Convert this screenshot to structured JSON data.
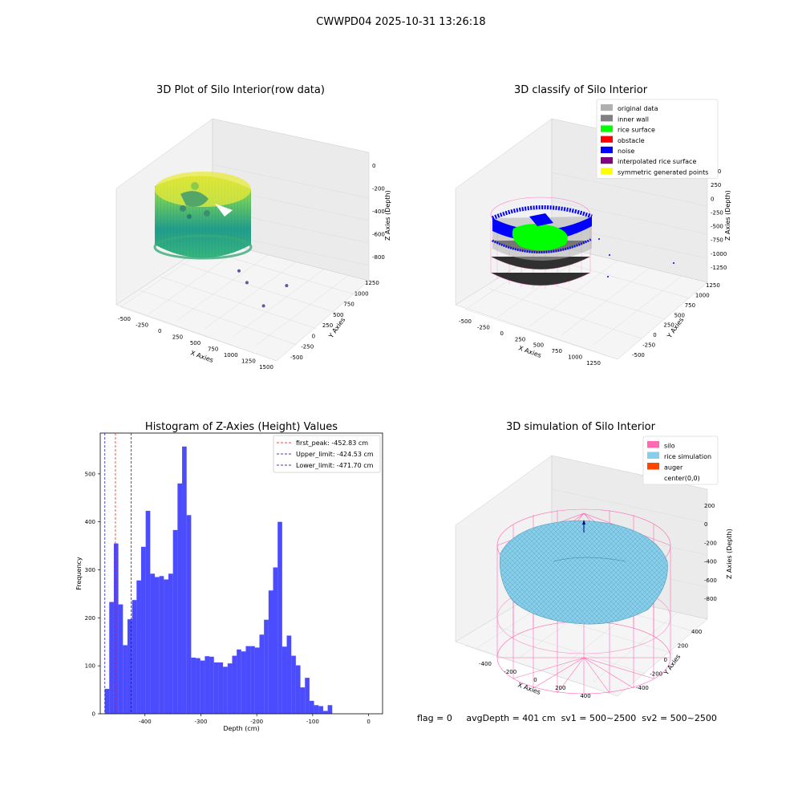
{
  "suptitle": "CWWPD04 2025-10-31 13:26:18",
  "footer": {
    "flag": "flag = 0",
    "avg_depth": "avgDepth = 401 cm",
    "sv1": "sv1 = 500~2500",
    "sv2": "sv2 = 500~2500"
  },
  "chart_data": [
    {
      "type": "scatter",
      "title": "3D Plot of Silo Interior(row data)",
      "xlabel": "X Axies",
      "ylabel": "Y Axies",
      "zlabel": "Z Axies (Depth)",
      "x_ticks": [
        "-500",
        "-250",
        "0",
        "250",
        "500",
        "750",
        "1000",
        "1250",
        "1500"
      ],
      "y_ticks": [
        "-500",
        "-250",
        "0",
        "250",
        "500",
        "750",
        "1000",
        "1250"
      ],
      "z_ticks": [
        "-800",
        "-600",
        "-400",
        "-200",
        "0"
      ],
      "colormap": "viridis",
      "outlier_points": [
        {
          "x": 1350,
          "y": 520,
          "z": -620
        },
        {
          "x": 1080,
          "y": 420,
          "z": -820
        },
        {
          "x": 900,
          "y": 320,
          "z": -560
        },
        {
          "x": 760,
          "y": 380,
          "z": -470
        }
      ]
    },
    {
      "type": "scatter",
      "title": "3D classify of Silo Interior",
      "xlabel": "X Axies",
      "ylabel": "Y Axies",
      "zlabel": "Z Axies (Depth)",
      "x_ticks": [
        "-500",
        "-250",
        "0",
        "250",
        "500",
        "750",
        "1000",
        "1250"
      ],
      "y_ticks": [
        "-500",
        "-250",
        "0",
        "250",
        "500",
        "750",
        "1000",
        "1250"
      ],
      "z_ticks": [
        "-1250",
        "-1000",
        "-750",
        "-500",
        "-250",
        "0",
        "250",
        "500"
      ],
      "legend": [
        {
          "label": "original data",
          "color": "#b0b0b0"
        },
        {
          "label": "inner wall",
          "color": "#808080"
        },
        {
          "label": "rice surface",
          "color": "#00ff00"
        },
        {
          "label": "obstacle",
          "color": "#ff0000"
        },
        {
          "label": "noise",
          "color": "#0000ff"
        },
        {
          "label": "interpolated rice surface",
          "color": "#800080"
        },
        {
          "label": "symmetric generated points",
          "color": "#ffff00"
        }
      ]
    },
    {
      "type": "bar",
      "title": "Histogram of Z-Axies (Height) Values",
      "xlabel": "Depth (cm)",
      "ylabel": "Frequency",
      "xlim": [
        -480,
        25
      ],
      "ylim": [
        0,
        585
      ],
      "x_ticks": [
        -400,
        -300,
        -200,
        -100,
        0
      ],
      "y_ticks": [
        0,
        100,
        200,
        300,
        400,
        500
      ],
      "bin_width": 8.14,
      "bin_start": -472.0,
      "bar_color": "#0000ff",
      "values": [
        52,
        233,
        355,
        228,
        143,
        197,
        237,
        278,
        348,
        423,
        292,
        285,
        287,
        280,
        292,
        383,
        480,
        557,
        414,
        117,
        116,
        111,
        120,
        119,
        107,
        107,
        98,
        105,
        121,
        134,
        130,
        141,
        141,
        138,
        165,
        196,
        257,
        305,
        400,
        140,
        163,
        121,
        101,
        55,
        75,
        27,
        18,
        16,
        6,
        18
      ],
      "vlines": [
        {
          "label": "first_peak: -452.83 cm",
          "x": -452.83,
          "color": "#ff0000"
        },
        {
          "label": "Upper_limit: -424.53 cm",
          "x": -424.53,
          "color": "#0000aa"
        },
        {
          "label": "Lower_limit: -471.70 cm",
          "x": -471.7,
          "color": "#0000aa"
        }
      ]
    },
    {
      "type": "scatter",
      "title": "3D simulation of Silo Interior",
      "xlabel": "X Axies",
      "ylabel": "Y Axies",
      "zlabel": "Z Axies (Depth)",
      "x_ticks": [
        "-400",
        "-200",
        "0",
        "200",
        "400"
      ],
      "y_ticks": [
        "-400",
        "-200",
        "0",
        "200",
        "400"
      ],
      "z_ticks": [
        "-800",
        "-600",
        "-400",
        "-200",
        "0",
        "200"
      ],
      "legend": [
        {
          "label": "silo",
          "color": "#ff69b4"
        },
        {
          "label": "rice simulation",
          "color": "#87ceeb"
        },
        {
          "label": "auger",
          "color": "#ff4500"
        },
        {
          "label": "center(0,0)",
          "color": "#ffffff"
        }
      ]
    }
  ]
}
